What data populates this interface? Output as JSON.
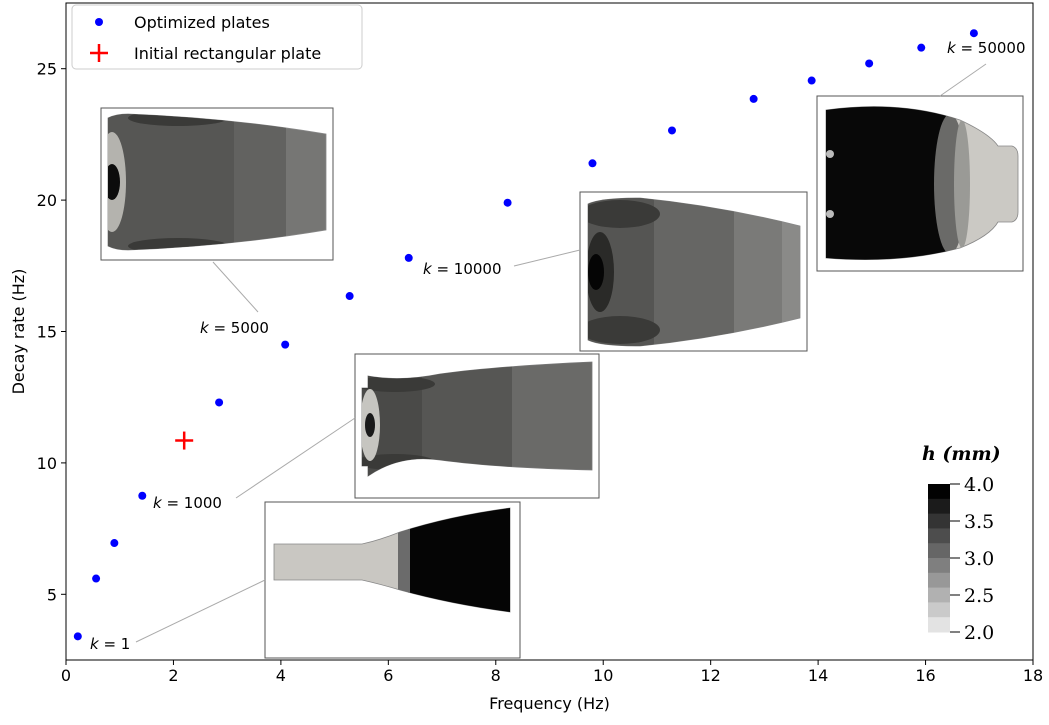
{
  "chart_data": {
    "type": "scatter",
    "title": "",
    "xlabel": "Frequency (Hz)",
    "ylabel": "Decay rate (Hz)",
    "xlim": [
      0,
      18
    ],
    "ylim": [
      2.5,
      27.5
    ],
    "x_ticks": [
      0,
      2,
      4,
      6,
      8,
      10,
      12,
      14,
      16,
      18
    ],
    "y_ticks": [
      5,
      10,
      15,
      20,
      25
    ],
    "grid": false,
    "legend_position": "top-left",
    "series": [
      {
        "name": "Optimized plates",
        "marker": "circle",
        "color": "#0000ff",
        "points": [
          [
            0.22,
            3.4
          ],
          [
            0.56,
            5.6
          ],
          [
            0.9,
            6.95
          ],
          [
            1.42,
            8.75
          ],
          [
            2.85,
            12.3
          ],
          [
            4.08,
            14.5
          ],
          [
            5.28,
            16.35
          ],
          [
            6.38,
            17.8
          ],
          [
            8.22,
            19.9
          ],
          [
            9.8,
            21.4
          ],
          [
            11.28,
            22.65
          ],
          [
            12.8,
            23.85
          ],
          [
            13.88,
            24.55
          ],
          [
            14.95,
            25.2
          ],
          [
            15.92,
            25.8
          ],
          [
            16.9,
            26.35
          ]
        ]
      },
      {
        "name": "Initial rectangular plate",
        "marker": "plus",
        "color": "#ff0000",
        "points": [
          [
            2.2,
            10.85
          ]
        ]
      }
    ],
    "annotations": [
      {
        "label": "k = 1",
        "k": "1"
      },
      {
        "label": "k = 1000",
        "k": "1000"
      },
      {
        "label": "k = 5000",
        "k": "5000"
      },
      {
        "label": "k = 10000",
        "k": "10000"
      },
      {
        "label": "k = 50000",
        "k": "50000"
      }
    ],
    "colorbar": {
      "title": "h (mm)",
      "ticks": [
        "4.0",
        "3.5",
        "3.0",
        "2.5",
        "2.0"
      ],
      "range": [
        2.0,
        4.0
      ]
    }
  }
}
